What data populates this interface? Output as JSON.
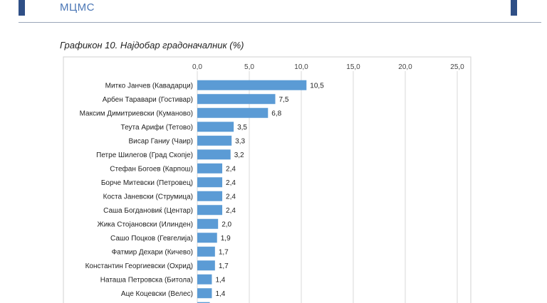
{
  "header": {
    "org": "МЦМС"
  },
  "chart_data": {
    "type": "bar",
    "orientation": "horizontal",
    "title": "Графикон 10. Најдобар градоначалник (%)",
    "categories": [
      "Митко Јанчев (Кавадарци)",
      "Арбен Таравари (Гостивар)",
      "Максим Димитриевски (Куманово)",
      "Теута Арифи (Тетово)",
      "Висар Ганиу (Чаир)",
      "Петре Шилегов (Град Скопје)",
      "Стефан Богоев (Карпош)",
      "Борче Митевски (Петровец)",
      "Коста Јаневски (Струмица)",
      "Саша Богдановиќ (Центар)",
      "Жика Стојановски (Илинден)",
      "Сашо Поцков (Гевгелија)",
      "Фатмир Дехари (Кичево)",
      "Константин Георгиевски (Охрид)",
      "Наташа Петровска (Битола)",
      "Аце Коцевски (Велес)"
    ],
    "values": [
      10.5,
      7.5,
      6.8,
      3.5,
      3.3,
      3.2,
      2.4,
      2.4,
      2.4,
      2.4,
      2.0,
      1.9,
      1.7,
      1.7,
      1.4,
      1.4
    ],
    "value_labels": [
      "10,5",
      "7,5",
      "6,8",
      "3,5",
      "3,3",
      "3,2",
      "2,4",
      "2,4",
      "2,4",
      "2,4",
      "2,0",
      "1,9",
      "1,7",
      "1,7",
      "1,4",
      "1,4"
    ],
    "xlim": [
      0,
      25
    ],
    "xticks": [
      "0,0",
      "5,0",
      "10,0",
      "15,0",
      "20,0",
      "25,0"
    ],
    "bar_color": "#5b9bd5",
    "grid": true
  }
}
